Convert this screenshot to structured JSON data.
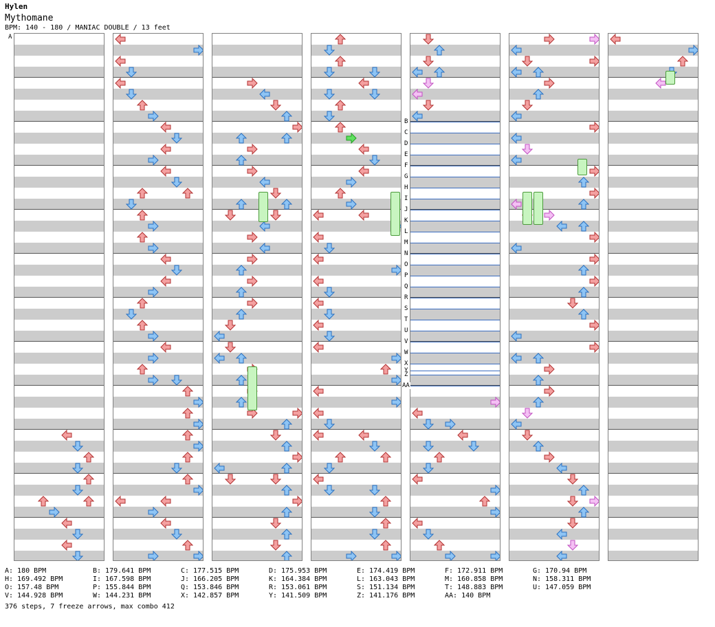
{
  "header": {
    "artist": "Hylen",
    "title": "Mythomane",
    "info": "BPM: 140 - 180 / MANIAC DOUBLE / 13 feet"
  },
  "first_marker": "A",
  "bpm_markers": [
    "B",
    "C",
    "D",
    "E",
    "F",
    "G",
    "H",
    "I",
    "J",
    "K",
    "L",
    "M",
    "N",
    "O",
    "P",
    "Q",
    "R",
    "S",
    "T",
    "U",
    "V",
    "W",
    "X",
    "Y",
    "Z",
    "AA"
  ],
  "legend": [
    [
      "A: 180 BPM",
      "B: 179.641 BPM",
      "C: 177.515 BPM",
      "D: 175.953 BPM",
      "E: 174.419 BPM",
      "F: 172.911 BPM",
      "G: 170.94 BPM"
    ],
    [
      "H: 169.492 BPM",
      "I: 167.598 BPM",
      "J: 166.205 BPM",
      "K: 164.384 BPM",
      "L: 163.043 BPM",
      "M: 160.858 BPM",
      "N: 158.311 BPM"
    ],
    [
      "O: 157.48 BPM",
      "P: 155.844 BPM",
      "Q: 153.846 BPM",
      "R: 153.061 BPM",
      "S: 151.134 BPM",
      "T: 148.883 BPM",
      "U: 147.059 BPM"
    ],
    [
      "V: 144.928 BPM",
      "W: 144.231 BPM",
      "X: 142.857 BPM",
      "Y: 141.509 BPM",
      "Z: 141.176 BPM",
      "AA: 140 BPM"
    ]
  ],
  "footer": "376 steps, 7 freeze arrows, max combo 412",
  "colors": {
    "red": "#f4a0a0",
    "blue": "#8ec4f4",
    "green": "#60e060",
    "pink": "#f4c0f4"
  }
}
